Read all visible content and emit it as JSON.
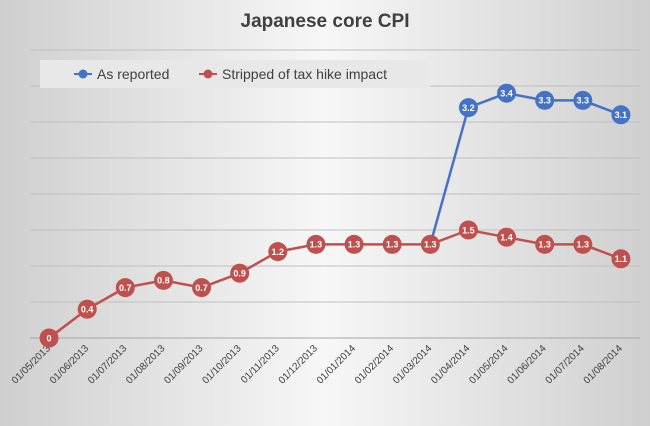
{
  "chart_data": {
    "type": "line",
    "title": "Japanese core CPI",
    "categories": [
      "01/05/2013",
      "01/06/2013",
      "01/07/2013",
      "01/08/2013",
      "01/09/2013",
      "01/10/2013",
      "01/11/2013",
      "01/12/2013",
      "01/01/2014",
      "01/02/2014",
      "01/03/2014",
      "01/04/2014",
      "01/05/2014",
      "01/06/2014",
      "01/07/2014",
      "01/08/2014"
    ],
    "series": [
      {
        "name": "As reported",
        "color": "#4472c4",
        "values": [
          null,
          null,
          null,
          null,
          null,
          null,
          null,
          null,
          null,
          null,
          1.3,
          3.2,
          3.4,
          3.3,
          3.3,
          3.1
        ],
        "labels": [
          null,
          null,
          null,
          null,
          null,
          null,
          null,
          null,
          null,
          null,
          null,
          "3.2",
          "3.4",
          "3.3",
          "3.3",
          "3.1"
        ]
      },
      {
        "name": "Stripped of tax hike impact",
        "color": "#c0504d",
        "values": [
          0,
          0.4,
          0.7,
          0.8,
          0.7,
          0.9,
          1.2,
          1.3,
          1.3,
          1.3,
          1.3,
          1.5,
          1.4,
          1.3,
          1.3,
          1.1
        ],
        "labels": [
          "0",
          "0.4",
          "0.7",
          "0.8",
          "0.7",
          "0.9",
          "1.2",
          "1.3",
          "1.3",
          "1.3",
          "1.3",
          "1.5",
          "1.4",
          "1.3",
          "1.3",
          "1.1"
        ]
      }
    ],
    "ylim": [
      0,
      4
    ],
    "y_gridline_step": 0.5,
    "grid": true,
    "legend": "top-left",
    "xlabel": "",
    "ylabel": ""
  }
}
